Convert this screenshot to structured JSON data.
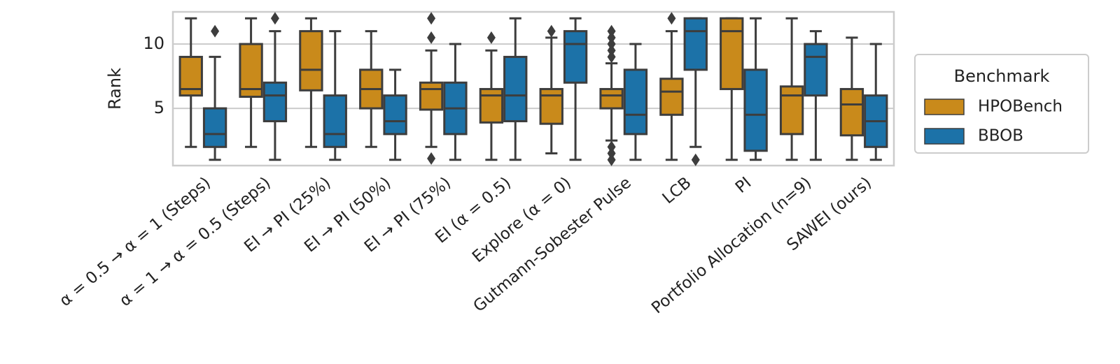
{
  "chart_data": {
    "type": "box",
    "y_label": "Rank",
    "categories": [
      "α = 0.5 → α = 1 (Steps)",
      "α = 1 → α = 0.5 (Steps)",
      "EI → PI (25%)",
      "EI → PI (50%)",
      "EI → PI (75%)",
      "EI (α = 0.5)",
      "Explore (α = 0)",
      "Gutmann-Sobester Pulse",
      "LCB",
      "PI",
      "Portfolio Allocation (n=9)",
      "SAWEI (ours)"
    ],
    "ylim": [
      0.55,
      12.5
    ],
    "yticks": [
      5,
      10
    ],
    "grid": true,
    "legend_title": "Benchmark",
    "legend_position": "right",
    "series": [
      {
        "name": "HPOBench",
        "color": "#c98a1b",
        "boxes": [
          {
            "low": 2,
            "q1": 6,
            "median": 6.5,
            "q3": 9,
            "high": 12,
            "outliers": []
          },
          {
            "low": 2,
            "q1": 5.9,
            "median": 6.5,
            "q3": 10,
            "high": 12,
            "outliers": []
          },
          {
            "low": 2,
            "q1": 6.4,
            "median": 8,
            "q3": 11,
            "high": 12,
            "outliers": []
          },
          {
            "low": 2,
            "q1": 5,
            "median": 6.5,
            "q3": 8,
            "high": 11,
            "outliers": []
          },
          {
            "low": 2,
            "q1": 4.9,
            "median": 6.5,
            "q3": 7,
            "high": 9.5,
            "outliers": [
              12,
              10.5,
              1.1
            ]
          },
          {
            "low": 1,
            "q1": 3.9,
            "median": 6,
            "q3": 6.5,
            "high": 9.5,
            "outliers": [
              10.5
            ]
          },
          {
            "low": 1.5,
            "q1": 3.8,
            "median": 6,
            "q3": 6.5,
            "high": 10.5,
            "outliers": [
              11
            ]
          },
          {
            "low": 2.5,
            "q1": 5,
            "median": 6,
            "q3": 6.5,
            "high": 8.5,
            "outliers": [
              11,
              10.5,
              10,
              9.5,
              9,
              2,
              1.5,
              1
            ]
          },
          {
            "low": 1,
            "q1": 4.5,
            "median": 6.3,
            "q3": 7.3,
            "high": 11,
            "outliers": [
              12
            ]
          },
          {
            "low": 1,
            "q1": 6.5,
            "median": 11,
            "q3": 12,
            "high": 12,
            "outliers": []
          },
          {
            "low": 1,
            "q1": 3,
            "median": 6,
            "q3": 6.7,
            "high": 12,
            "outliers": []
          },
          {
            "low": 1,
            "q1": 2.9,
            "median": 5.3,
            "q3": 6.5,
            "high": 10.5,
            "outliers": []
          }
        ]
      },
      {
        "name": "BBOB",
        "color": "#1c72a8",
        "boxes": [
          {
            "low": 1,
            "q1": 2,
            "median": 3,
            "q3": 5,
            "high": 9,
            "outliers": [
              11
            ]
          },
          {
            "low": 1,
            "q1": 4,
            "median": 6,
            "q3": 7,
            "high": 11,
            "outliers": [
              12
            ]
          },
          {
            "low": 1,
            "q1": 2,
            "median": 3,
            "q3": 6,
            "high": 11,
            "outliers": []
          },
          {
            "low": 1,
            "q1": 3,
            "median": 4,
            "q3": 6,
            "high": 8,
            "outliers": []
          },
          {
            "low": 1,
            "q1": 3,
            "median": 5,
            "q3": 7,
            "high": 10,
            "outliers": []
          },
          {
            "low": 1,
            "q1": 4,
            "median": 6,
            "q3": 9,
            "high": 12,
            "outliers": []
          },
          {
            "low": 1,
            "q1": 7,
            "median": 10,
            "q3": 11,
            "high": 12,
            "outliers": []
          },
          {
            "low": 1,
            "q1": 3,
            "median": 4.5,
            "q3": 8,
            "high": 10,
            "outliers": []
          },
          {
            "low": 2,
            "q1": 8,
            "median": 11,
            "q3": 12,
            "high": 12,
            "outliers": [
              1
            ]
          },
          {
            "low": 1,
            "q1": 1.7,
            "median": 4.5,
            "q3": 8,
            "high": 12,
            "outliers": []
          },
          {
            "low": 1,
            "q1": 6,
            "median": 9,
            "q3": 10,
            "high": 11,
            "outliers": []
          },
          {
            "low": 1,
            "q1": 2,
            "median": 4,
            "q3": 6,
            "high": 10,
            "outliers": []
          }
        ]
      }
    ]
  }
}
